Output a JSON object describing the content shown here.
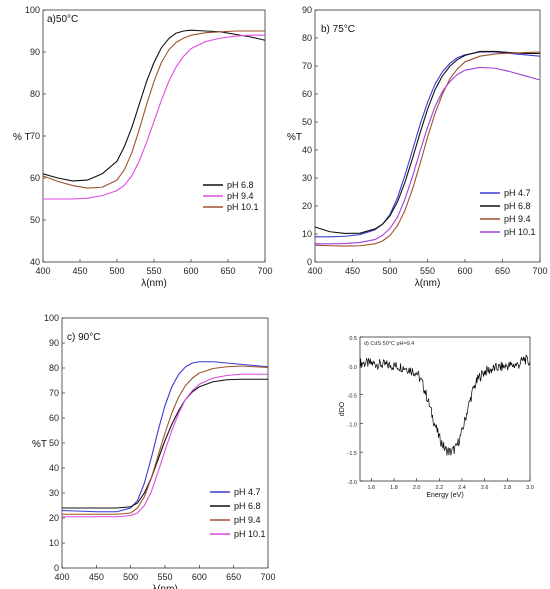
{
  "chart_data": [
    {
      "type": "line",
      "title": "a)50°C",
      "xlabel": "λ(nm)",
      "ylabel": "% T",
      "xlim": [
        400,
        700
      ],
      "ylim": [
        40,
        100
      ],
      "xticks": [
        400,
        450,
        500,
        550,
        600,
        650,
        700
      ],
      "yticks": [
        40,
        50,
        60,
        70,
        80,
        90,
        100
      ],
      "legend": "bottom-right",
      "series": [
        {
          "name": "pH  6.8",
          "color": "#111111",
          "x": [
            400,
            420,
            440,
            460,
            480,
            500,
            510,
            520,
            530,
            540,
            550,
            560,
            570,
            580,
            590,
            600,
            620,
            640,
            660,
            680,
            700
          ],
          "y": [
            61,
            60,
            59.3,
            59.5,
            61,
            64,
            67.5,
            72,
            77.5,
            83,
            87.5,
            91,
            93.2,
            94.5,
            95,
            95.2,
            95,
            94.8,
            94.2,
            93.6,
            92.8
          ]
        },
        {
          "name": "pH  9.4",
          "color": "#e14be0",
          "x": [
            400,
            420,
            440,
            460,
            480,
            500,
            510,
            520,
            530,
            540,
            550,
            560,
            570,
            580,
            590,
            600,
            620,
            640,
            660,
            680,
            700
          ],
          "y": [
            55,
            55,
            55,
            55.2,
            55.8,
            57,
            58.3,
            60.5,
            64,
            68.5,
            73.5,
            78.5,
            83,
            86.5,
            89,
            90.8,
            92.5,
            93.3,
            93.8,
            94,
            94
          ]
        },
        {
          "name": "pH 10.1",
          "color": "#a0522d",
          "x": [
            400,
            420,
            440,
            460,
            480,
            500,
            510,
            520,
            530,
            540,
            550,
            560,
            570,
            580,
            590,
            600,
            620,
            640,
            660,
            680,
            700
          ],
          "y": [
            60.5,
            59.2,
            58.2,
            57.6,
            57.8,
            59.5,
            62,
            66,
            71.5,
            77.5,
            83,
            87.5,
            90.5,
            92.3,
            93.3,
            94,
            94.6,
            94.8,
            95,
            95,
            95
          ]
        }
      ]
    },
    {
      "type": "line",
      "title": "b) 75°C",
      "xlabel": "λ(nm)",
      "ylabel": "%T",
      "xlim": [
        400,
        700
      ],
      "ylim": [
        0,
        90
      ],
      "xticks": [
        400,
        450,
        500,
        550,
        600,
        650,
        700
      ],
      "yticks": [
        0,
        10,
        20,
        30,
        40,
        50,
        60,
        70,
        80,
        90
      ],
      "legend": "bottom-right",
      "series": [
        {
          "name": "pH 4.7",
          "color": "#3b3bd6",
          "x": [
            400,
            420,
            440,
            460,
            480,
            490,
            500,
            510,
            520,
            530,
            540,
            550,
            560,
            570,
            580,
            590,
            600,
            620,
            640,
            660,
            680,
            700
          ],
          "y": [
            9,
            9,
            9.2,
            9.8,
            11.5,
            13.5,
            17,
            23,
            31,
            40,
            49,
            57,
            63.5,
            68,
            71,
            73,
            74,
            75,
            75,
            74.5,
            74,
            73.5
          ]
        },
        {
          "name": "pH 6.8",
          "color": "#111111",
          "x": [
            400,
            420,
            440,
            460,
            480,
            490,
            500,
            510,
            520,
            530,
            540,
            550,
            560,
            570,
            580,
            590,
            600,
            620,
            640,
            660,
            680,
            700
          ],
          "y": [
            12.5,
            10.8,
            10.2,
            10.3,
            11.8,
            13.5,
            16.5,
            21.5,
            28.5,
            37,
            46,
            54.5,
            61.5,
            66.5,
            70,
            72.3,
            73.8,
            75.2,
            75.2,
            74.8,
            74.5,
            74.5
          ]
        },
        {
          "name": "pH 9.4",
          "color": "#a0522d",
          "x": [
            400,
            420,
            440,
            460,
            480,
            490,
            500,
            510,
            520,
            530,
            540,
            550,
            560,
            570,
            580,
            590,
            600,
            620,
            640,
            660,
            680,
            700
          ],
          "y": [
            6,
            5.8,
            5.7,
            5.8,
            6.5,
            7.5,
            9.5,
            13,
            18.5,
            26,
            35,
            44.5,
            53,
            60,
            65.5,
            69,
            71.5,
            73.5,
            74.3,
            74.6,
            74.8,
            75
          ]
        },
        {
          "name": "pH 10.1",
          "color": "#a040d8",
          "x": [
            400,
            420,
            440,
            460,
            480,
            490,
            500,
            510,
            520,
            530,
            540,
            550,
            560,
            570,
            580,
            590,
            600,
            620,
            640,
            660,
            680,
            700
          ],
          "y": [
            6.5,
            6.5,
            6.6,
            7,
            8,
            9.5,
            12,
            16,
            22.5,
            30.5,
            39.5,
            48,
            55.5,
            61,
            64.5,
            67,
            68.5,
            69.5,
            69.2,
            68,
            66.5,
            65
          ]
        }
      ]
    },
    {
      "type": "line",
      "title": "c) 90°C",
      "xlabel": "λ(nm)",
      "ylabel": "%T",
      "xlim": [
        400,
        700
      ],
      "ylim": [
        0,
        100
      ],
      "xticks": [
        400,
        450,
        500,
        550,
        600,
        650,
        700
      ],
      "yticks": [
        0,
        10,
        20,
        30,
        40,
        50,
        60,
        70,
        80,
        90,
        100
      ],
      "legend": "bottom-right",
      "series": [
        {
          "name": "pH 4.7",
          "color": "#3b3bd6",
          "x": [
            400,
            450,
            480,
            500,
            510,
            520,
            530,
            540,
            550,
            560,
            570,
            580,
            590,
            600,
            620,
            640,
            660,
            680,
            700
          ],
          "y": [
            23,
            22.5,
            22.5,
            24,
            27,
            34,
            44,
            55,
            65,
            72.5,
            77.5,
            80.5,
            82,
            82.5,
            82.5,
            82,
            81.5,
            81,
            80.5
          ]
        },
        {
          "name": "pH 6.8",
          "color": "#111111",
          "x": [
            400,
            450,
            480,
            500,
            510,
            520,
            530,
            540,
            550,
            560,
            570,
            580,
            590,
            600,
            620,
            640,
            660,
            680,
            700
          ],
          "y": [
            24,
            24,
            24,
            24.5,
            26,
            30,
            36,
            43.5,
            51,
            57.5,
            63,
            67.5,
            70.5,
            72.5,
            74.5,
            75.3,
            75.5,
            75.5,
            75.5
          ]
        },
        {
          "name": "pH 9.4",
          "color": "#a0522d",
          "x": [
            400,
            450,
            480,
            500,
            510,
            520,
            530,
            540,
            550,
            560,
            570,
            580,
            590,
            600,
            620,
            640,
            660,
            680,
            700
          ],
          "y": [
            21.5,
            21.5,
            21.5,
            22,
            24,
            28.5,
            36,
            45,
            54,
            62,
            68.5,
            73,
            76,
            78,
            79.8,
            80.5,
            80.8,
            80.5,
            80.2
          ]
        },
        {
          "name": "pH 10.1",
          "color": "#d84be0",
          "x": [
            400,
            450,
            480,
            500,
            510,
            520,
            530,
            540,
            550,
            560,
            570,
            580,
            590,
            600,
            620,
            640,
            660,
            680,
            700
          ],
          "y": [
            20.5,
            20.5,
            20.5,
            21,
            22,
            25,
            30.5,
            38.5,
            47,
            55,
            62,
            67.5,
            71,
            73.5,
            76,
            77,
            77.5,
            77.5,
            77.5
          ]
        }
      ]
    },
    {
      "type": "line",
      "title": "d) CdS 50°C pH=9.4",
      "xlabel": "Energy (eV)",
      "ylabel": "dDO",
      "xlim": [
        1.5,
        3.0
      ],
      "ylim": [
        -2.0,
        0.5
      ],
      "xticks": [
        1.6,
        1.8,
        2.0,
        2.2,
        2.4,
        2.6,
        2.8,
        3.0
      ],
      "yticks": [
        0.5,
        0.0,
        -0.5,
        -1.0,
        -1.5,
        -2.0
      ],
      "xticklabels": [
        "1.6",
        "1.8",
        "2.0",
        "2.2",
        "2.4",
        "2.6",
        "2.8",
        "3.0"
      ],
      "yticklabels": [
        "0.5",
        "0.0",
        "-0.5",
        "-1.0",
        "-1.5",
        "-2.0"
      ],
      "series": [
        {
          "color": "#000000",
          "x": [
            1.5,
            1.6,
            1.7,
            1.8,
            1.9,
            2.0,
            2.05,
            2.1,
            2.15,
            2.2,
            2.25,
            2.3,
            2.35,
            2.4,
            2.45,
            2.5,
            2.55,
            2.6,
            2.7,
            2.8,
            2.9,
            2.95,
            3.0
          ],
          "y": [
            0.05,
            0.04,
            0.02,
            0.0,
            -0.03,
            -0.12,
            -0.3,
            -0.6,
            -0.95,
            -1.25,
            -1.45,
            -1.5,
            -1.42,
            -1.15,
            -0.75,
            -0.4,
            -0.2,
            -0.1,
            -0.04,
            0.0,
            0.02,
            0.12,
            0.05
          ]
        }
      ]
    }
  ]
}
